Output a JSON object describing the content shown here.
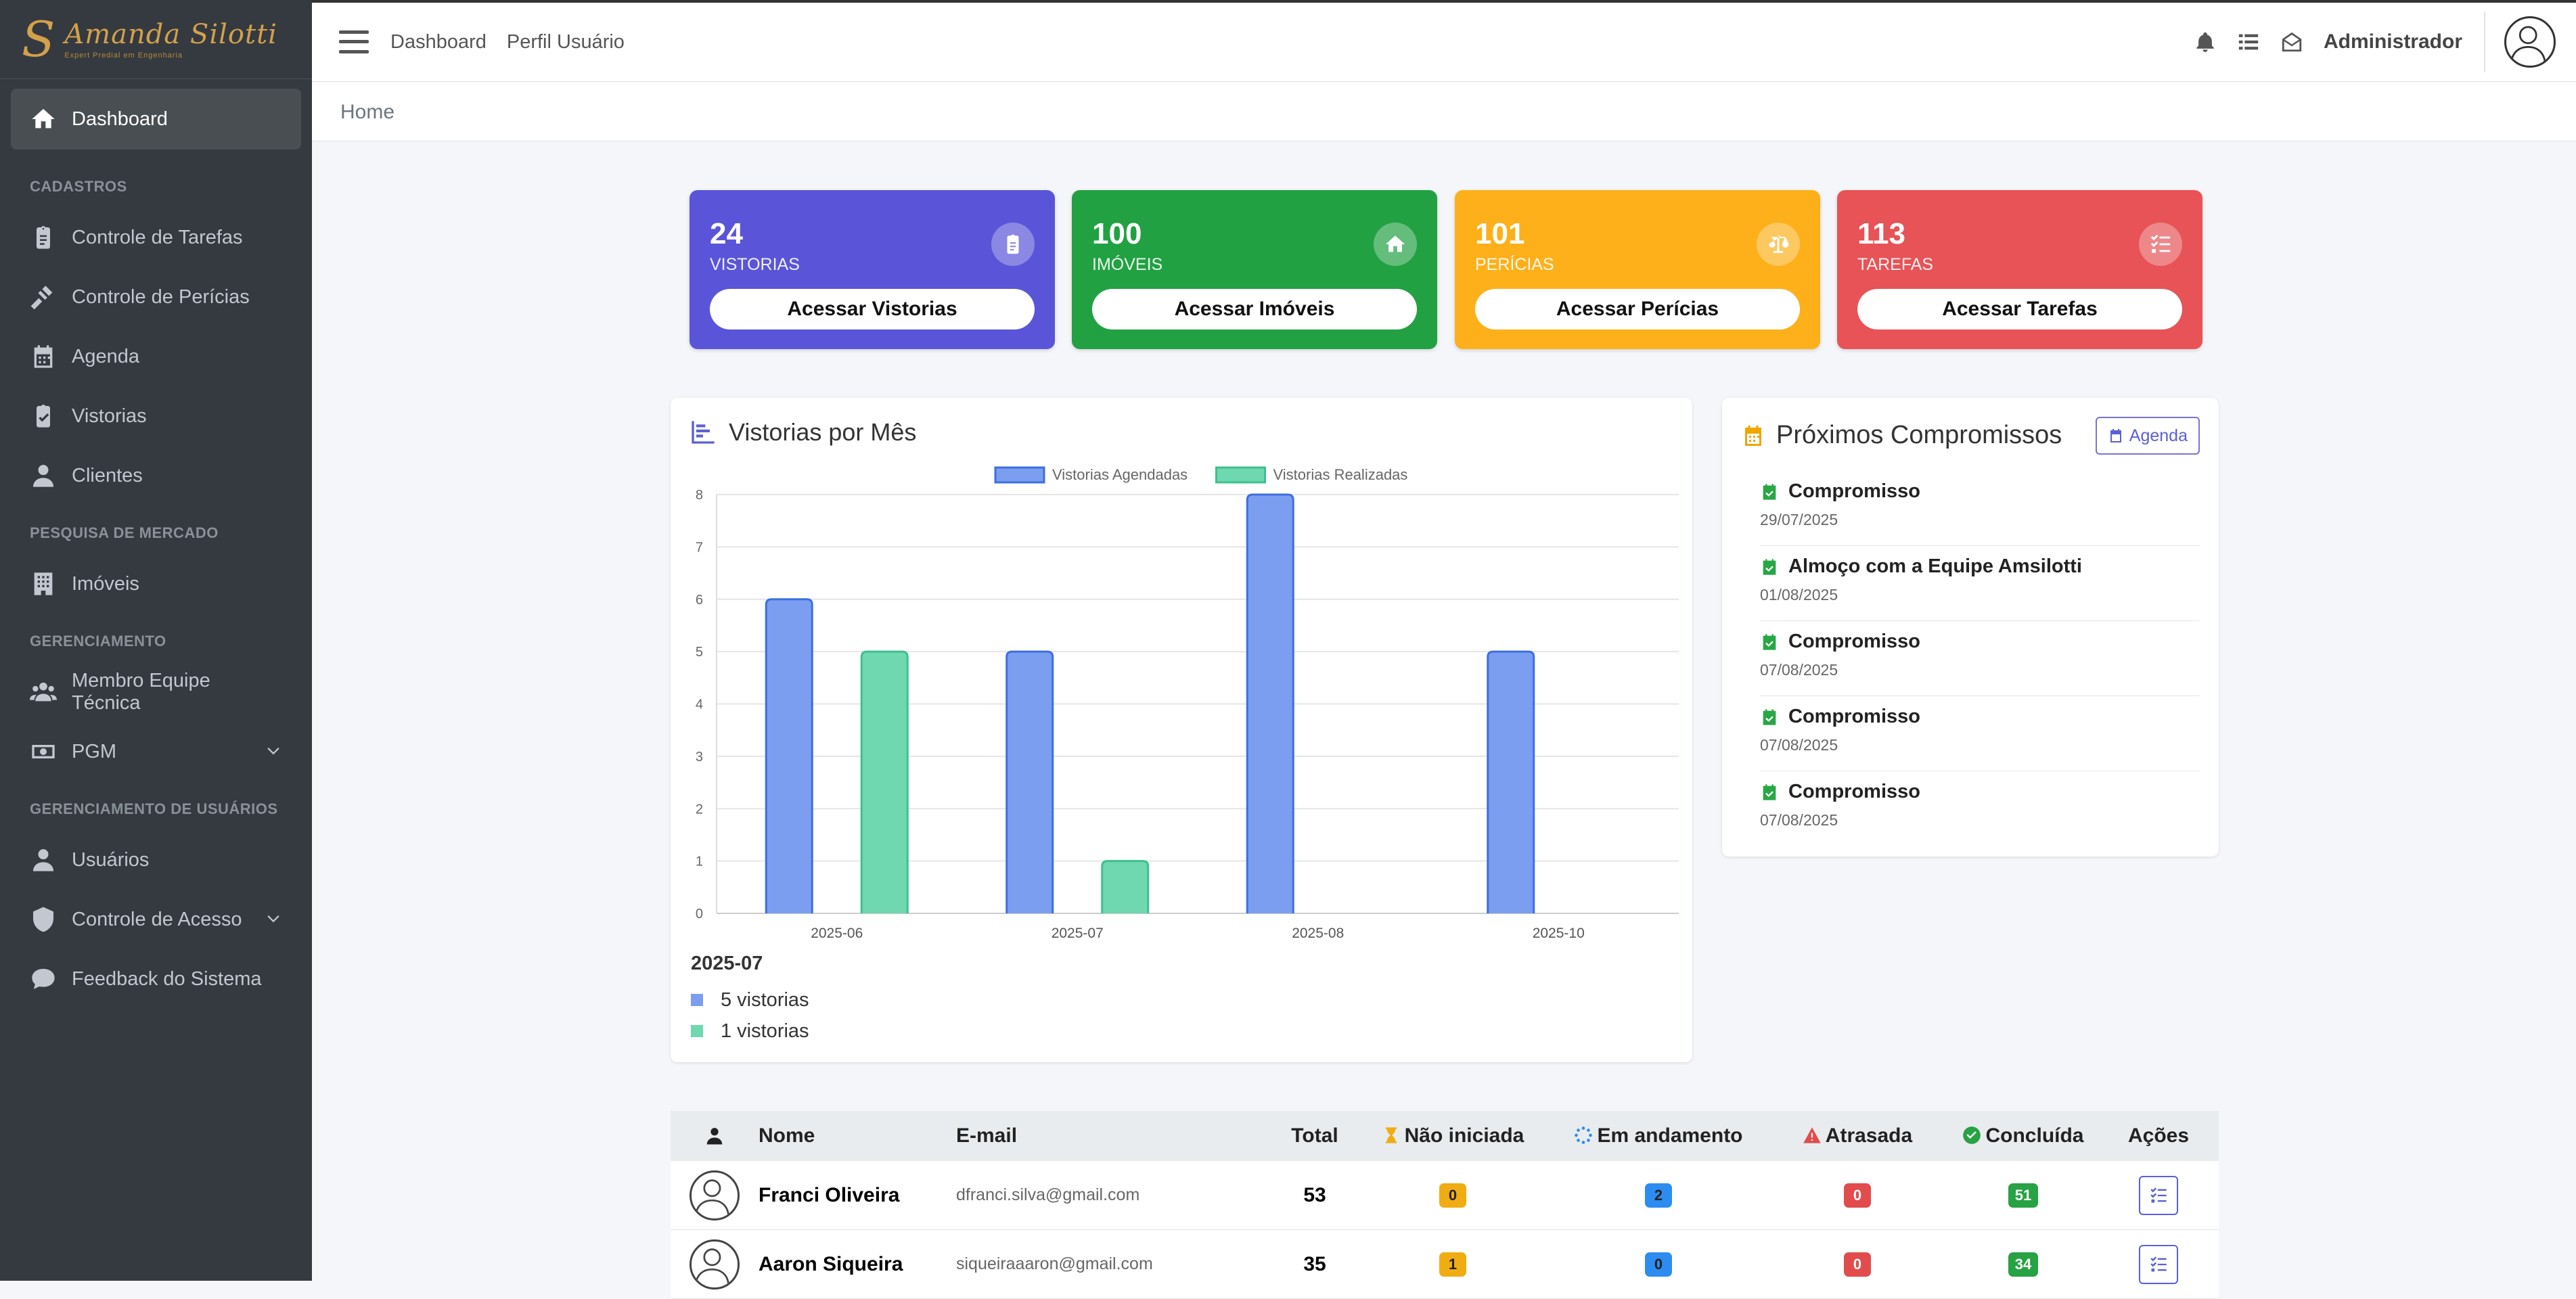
{
  "brand": {
    "name": "Amanda Silotti",
    "subtitle": "Expert Predial em Engenharia",
    "mark": "S"
  },
  "sidebar": {
    "dashboard": "Dashboard",
    "sections": [
      {
        "header": "CADASTROS",
        "items": [
          "Controle de Tarefas",
          "Controle de Perícias",
          "Agenda",
          "Vistorias",
          "Clientes"
        ]
      },
      {
        "header": "PESQUISA DE MERCADO",
        "items": [
          "Imóveis"
        ]
      },
      {
        "header": "GERENCIAMENTO",
        "items": [
          "Membro Equipe Técnica",
          "PGM"
        ]
      },
      {
        "header": "GERENCIAMENTO DE USUÁRIOS",
        "items": [
          "Usuários",
          "Controle de Acesso",
          "Feedback do Sistema"
        ]
      }
    ]
  },
  "topbar": {
    "link1": "Dashboard",
    "link2": "Perfil Usuário",
    "user": "Administrador"
  },
  "breadcrumb": "Home",
  "stats": [
    {
      "value": "24",
      "label": "VISTORIAS",
      "button": "Acessar Vistorias",
      "color": "#5a55d8"
    },
    {
      "value": "100",
      "label": "IMÓVEIS",
      "button": "Acessar Imóveis",
      "color": "#22a143"
    },
    {
      "value": "101",
      "label": "PERÍCIAS",
      "button": "Acessar Perícias",
      "color": "#fdb01a"
    },
    {
      "value": "113",
      "label": "TAREFAS",
      "button": "Acessar Tarefas",
      "color": "#e75356"
    }
  ],
  "chart_data": {
    "type": "bar",
    "title": "Vistorias por Mês",
    "categories": [
      "2025-06",
      "2025-07",
      "2025-08",
      "2025-10"
    ],
    "series": [
      {
        "name": "Vistorias Agendadas",
        "values": [
          6,
          5,
          8,
          5
        ],
        "color": "#7b9ef0",
        "border": "#3d6fe0"
      },
      {
        "name": "Vistorias Realizadas",
        "values": [
          5,
          1,
          0,
          0
        ],
        "color": "#6fd8b0",
        "border": "#3fc08e"
      }
    ],
    "ylim": [
      0,
      8
    ],
    "yticks": [
      0,
      1,
      2,
      3,
      4,
      5,
      6,
      7,
      8
    ],
    "legend": "top",
    "tooltip": {
      "title": "2025-07",
      "rows": [
        "5 vistorias",
        "1 vistorias"
      ]
    }
  },
  "upcoming": {
    "title": "Próximos Compromissos",
    "button": "Agenda",
    "items": [
      {
        "name": "Compromisso",
        "date": "29/07/2025"
      },
      {
        "name": "Almoço com a Equipe Amsilotti",
        "date": "01/08/2025"
      },
      {
        "name": "Compromisso",
        "date": "07/08/2025"
      },
      {
        "name": "Compromisso",
        "date": "07/08/2025"
      },
      {
        "name": "Compromisso",
        "date": "07/08/2025"
      }
    ]
  },
  "table": {
    "headers": {
      "name": "Nome",
      "email": "E-mail",
      "total": "Total",
      "not_started": "Não iniciada",
      "in_progress": "Em andamento",
      "late": "Atrasada",
      "done": "Concluída",
      "actions": "Ações"
    },
    "rows": [
      {
        "name": "Franci Oliveira",
        "email": "dfranci.silva@gmail.com",
        "total": "53",
        "not_started": "0",
        "in_progress": "2",
        "late": "0",
        "done": "51"
      },
      {
        "name": "Aaron Siqueira",
        "email": "siqueiraaaron@gmail.com",
        "total": "35",
        "not_started": "1",
        "in_progress": "0",
        "late": "0",
        "done": "34"
      }
    ]
  }
}
